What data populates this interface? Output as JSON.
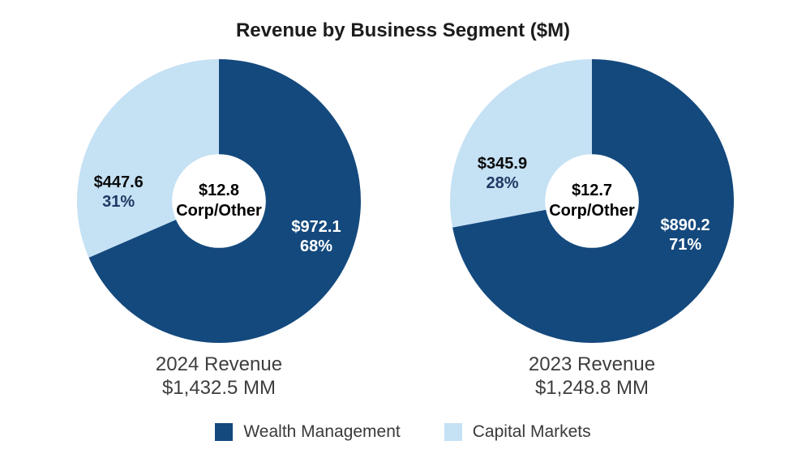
{
  "title": "Revenue by Business Segment ($M)",
  "colors": {
    "wealth_management": "#14497D",
    "capital_markets": "#C5E1F4",
    "pct_text_navy": "#1F3864",
    "background": "#FFFFFF"
  },
  "legend": {
    "position": "bottom-center",
    "items": [
      {
        "label": "Wealth Management",
        "color": "#14497D"
      },
      {
        "label": "Capital Markets",
        "color": "#C5E1F4"
      }
    ]
  },
  "chart_data": [
    {
      "type": "pie",
      "donut": true,
      "start_angle_deg": 0,
      "hole_radius_frac": 0.33,
      "caption": {
        "line1": "2024 Revenue",
        "line2": "$1,432.5 MM"
      },
      "total_mm": 1432.5,
      "center_label": {
        "value_label": "$12.8",
        "name": "Corp/Other",
        "value": 12.8
      },
      "segments": [
        {
          "name": "Wealth Management",
          "value": 972.1,
          "pct": 68,
          "value_label": "$972.1",
          "pct_label": "68%",
          "color": "#14497D",
          "value_label_color": "#FFFFFF",
          "pct_label_color": "#FFFFFF",
          "label_angle_deg": 110,
          "label_radius_frac": 0.73
        },
        {
          "name": "Capital Markets",
          "value": 447.6,
          "pct": 31,
          "value_label": "$447.6",
          "pct_label": "31%",
          "color": "#C5E1F4",
          "value_label_color": "#0a0a0a",
          "pct_label_color": "#1F3864",
          "label_angle_deg": 275,
          "label_radius_frac": 0.71
        }
      ]
    },
    {
      "type": "pie",
      "donut": true,
      "start_angle_deg": 0,
      "hole_radius_frac": 0.33,
      "caption": {
        "line1": "2023 Revenue",
        "line2": "$1,248.8 MM"
      },
      "total_mm": 1248.8,
      "center_label": {
        "value_label": "$12.7",
        "name": "Corp/Other",
        "value": 12.7
      },
      "segments": [
        {
          "name": "Wealth Management",
          "value": 890.2,
          "pct": 71,
          "value_label": "$890.2",
          "pct_label": "71%",
          "color": "#14497D",
          "value_label_color": "#FFFFFF",
          "pct_label_color": "#FFFFFF",
          "label_angle_deg": 110,
          "label_radius_frac": 0.7
        },
        {
          "name": "Capital Markets",
          "value": 345.9,
          "pct": 28,
          "value_label": "$345.9",
          "pct_label": "28%",
          "color": "#C5E1F4",
          "value_label_color": "#0a0a0a",
          "pct_label_color": "#1F3864",
          "label_angle_deg": 287,
          "label_radius_frac": 0.66
        }
      ]
    }
  ]
}
